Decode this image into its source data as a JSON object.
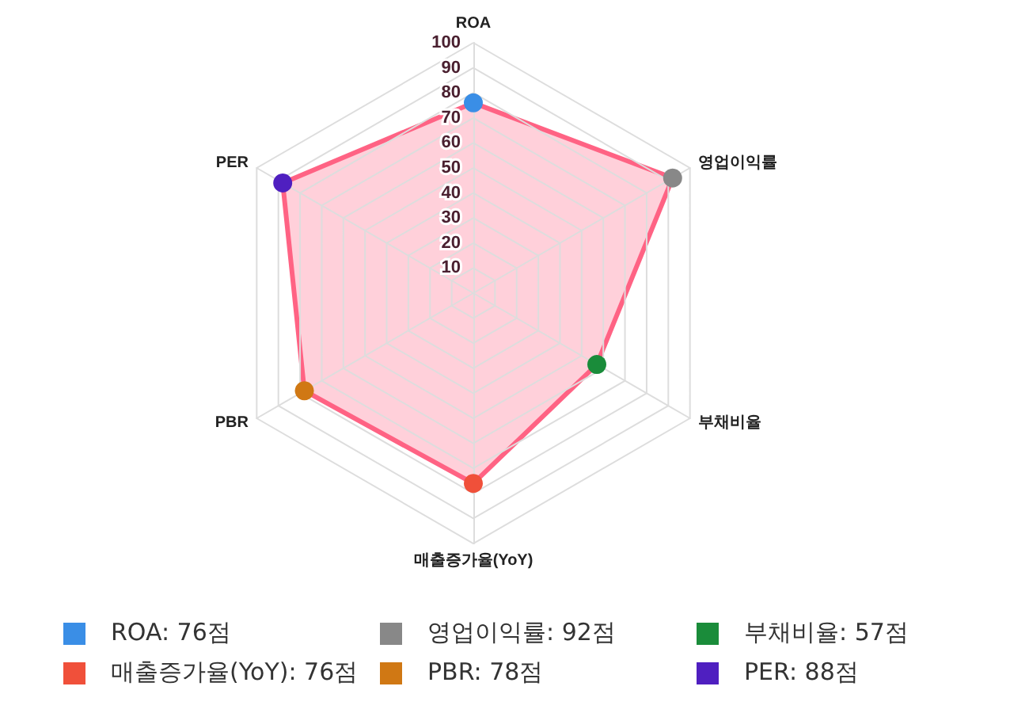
{
  "chart_data": {
    "type": "radar",
    "categories": [
      "ROA",
      "영업이익률",
      "부채비율",
      "매출증가율(YoY)",
      "PBR",
      "PER"
    ],
    "ylim": [
      0,
      100
    ],
    "yticks": [
      10,
      20,
      30,
      40,
      50,
      60,
      70,
      80,
      90,
      100
    ],
    "grid": true,
    "marker": "circle",
    "annotations": [
      "ROA: 76점",
      "영업이익률: 92점",
      "부채비율: 57점",
      "매출증가율(YoY): 76점",
      "PBR: 78점",
      "PER: 88점"
    ],
    "series": [
      {
        "color": "#ff6384",
        "colors": [
          "#3a8ee6",
          "#888888",
          "#1a8c3a",
          "#f0503a",
          "#d07814",
          "#4f1fc0"
        ],
        "values": [
          76,
          92,
          57,
          76,
          78,
          88
        ]
      }
    ]
  }
}
